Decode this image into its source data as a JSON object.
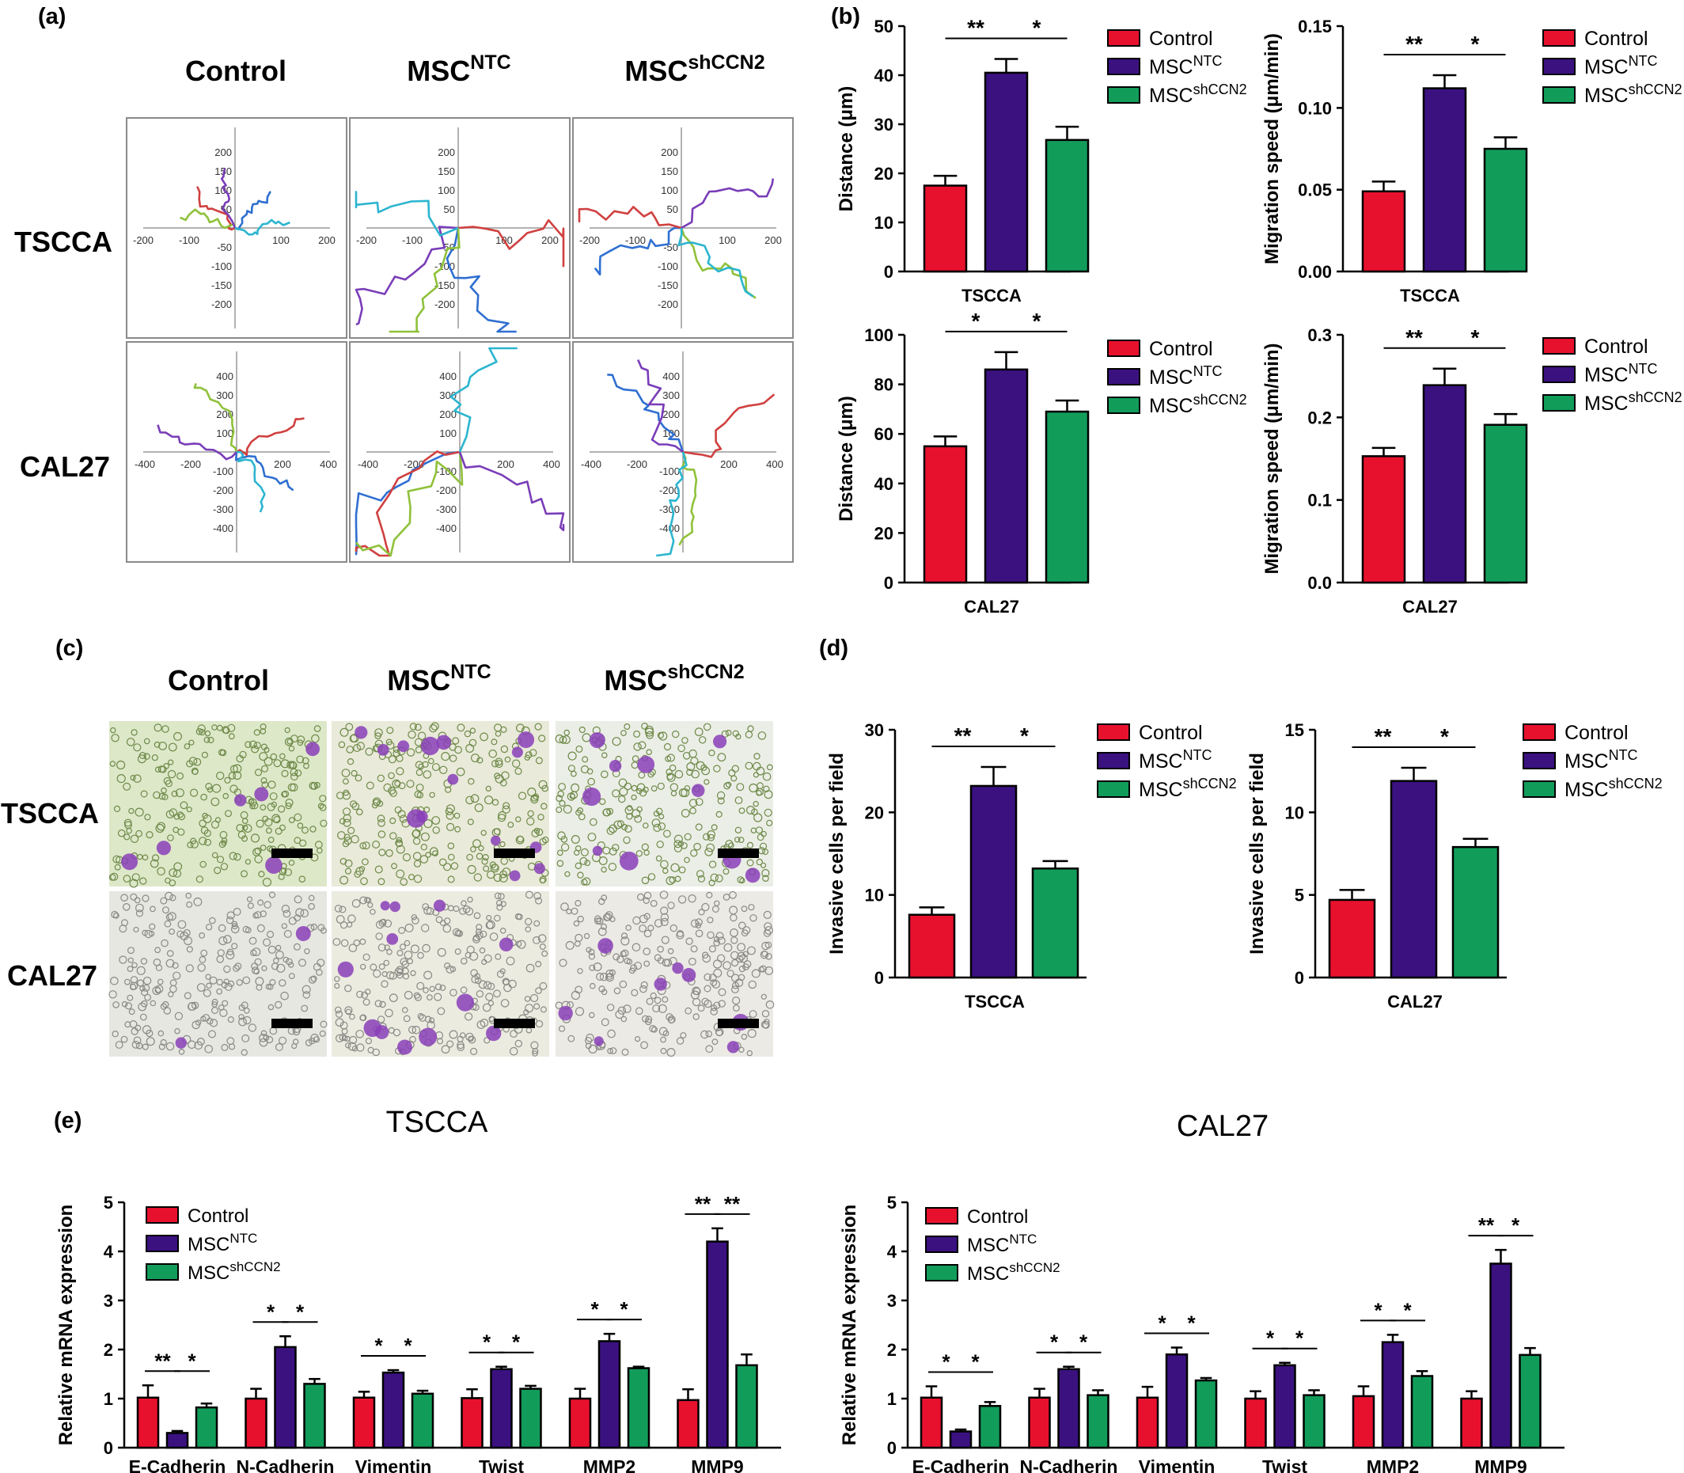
{
  "colors": {
    "control": "#e8112d",
    "ntc": "#3b1180",
    "sh": "#129c5a"
  },
  "panels": {
    "a": "(a)",
    "b": "(b)",
    "c": "(c)",
    "d": "(d)",
    "e": "(e)"
  },
  "legend": {
    "control": "Control",
    "ntc_base": "MSC",
    "ntc_sup": "NTC",
    "sh_base": "MSC",
    "sh_sup": "shCCN2"
  },
  "panel_a": {
    "columns": [
      "Control",
      "MSC",
      "MSC"
    ],
    "column_sups": [
      "",
      "NTC",
      "shCCN2"
    ],
    "rows": [
      "TSCCA",
      "CAL27"
    ],
    "tscca_ticks": [
      "200",
      "150",
      "100",
      "50",
      "-50",
      "-100",
      "-150",
      "-200",
      "-200",
      "-100",
      "100",
      "200"
    ],
    "cal27_ticks": [
      "400",
      "300",
      "200",
      "100",
      "-100",
      "-200",
      "-300",
      "-400",
      "-400",
      "-200",
      "200",
      "400"
    ]
  },
  "panel_c": {
    "columns": [
      "Control",
      "MSC",
      "MSC"
    ],
    "column_sups": [
      "",
      "NTC",
      "shCCN2"
    ],
    "rows": [
      "TSCCA",
      "CAL27"
    ]
  },
  "section_e_titles": [
    "TSCCA",
    "CAL27"
  ],
  "chart_data": [
    {
      "id": "b1",
      "type": "bar",
      "categories": [
        "TSCCA"
      ],
      "series": [
        {
          "name": "Control",
          "values": [
            17.5
          ],
          "err": [
            2
          ]
        },
        {
          "name": "MSC NTC",
          "values": [
            40.5
          ],
          "err": [
            2.8
          ]
        },
        {
          "name": "MSC shCCN2",
          "values": [
            26.8
          ],
          "err": [
            2.7
          ]
        }
      ],
      "ylabel": "Distance (μm)",
      "xlabel": "TSCCA",
      "ylim": [
        0,
        50
      ],
      "yticks": [
        "0",
        "10",
        "20",
        "30",
        "40",
        "50"
      ],
      "sig": [
        "**",
        "*"
      ]
    },
    {
      "id": "b2",
      "type": "bar",
      "categories": [
        "TSCCA"
      ],
      "series": [
        {
          "name": "Control",
          "values": [
            0.049
          ],
          "err": [
            0.006
          ]
        },
        {
          "name": "MSC NTC",
          "values": [
            0.112
          ],
          "err": [
            0.008
          ]
        },
        {
          "name": "MSC shCCN2",
          "values": [
            0.075
          ],
          "err": [
            0.007
          ]
        }
      ],
      "ylabel": "Migration speed (μm/min)",
      "xlabel": "TSCCA",
      "ylim": [
        0,
        0.15
      ],
      "yticks": [
        "0.00",
        "0.05",
        "0.10",
        "0.15"
      ],
      "sig": [
        "**",
        "*"
      ]
    },
    {
      "id": "b3",
      "type": "bar",
      "categories": [
        "CAL27"
      ],
      "series": [
        {
          "name": "Control",
          "values": [
            55
          ],
          "err": [
            4
          ]
        },
        {
          "name": "MSC NTC",
          "values": [
            86
          ],
          "err": [
            7
          ]
        },
        {
          "name": "MSC shCCN2",
          "values": [
            69
          ],
          "err": [
            4.5
          ]
        }
      ],
      "ylabel": "Distance (μm)",
      "xlabel": "CAL27",
      "ylim": [
        0,
        100
      ],
      "yticks": [
        "0",
        "20",
        "40",
        "60",
        "80",
        "100"
      ],
      "sig": [
        "*",
        "*"
      ]
    },
    {
      "id": "b4",
      "type": "bar",
      "categories": [
        "CAL27"
      ],
      "series": [
        {
          "name": "Control",
          "values": [
            0.153
          ],
          "err": [
            0.01
          ]
        },
        {
          "name": "MSC NTC",
          "values": [
            0.239
          ],
          "err": [
            0.02
          ]
        },
        {
          "name": "MSC shCCN2",
          "values": [
            0.191
          ],
          "err": [
            0.013
          ]
        }
      ],
      "ylabel": "Migration speed (μm/min)",
      "xlabel": "CAL27",
      "ylim": [
        0,
        0.3
      ],
      "yticks": [
        "0.0",
        "0.1",
        "0.2",
        "0.3"
      ],
      "sig": [
        "**",
        "*"
      ]
    },
    {
      "id": "d1",
      "type": "bar",
      "categories": [
        "TSCCA"
      ],
      "series": [
        {
          "name": "Control",
          "values": [
            7.6
          ],
          "err": [
            0.9
          ]
        },
        {
          "name": "MSC NTC",
          "values": [
            23.2
          ],
          "err": [
            2.3
          ]
        },
        {
          "name": "MSC shCCN2",
          "values": [
            13.2
          ],
          "err": [
            0.9
          ]
        }
      ],
      "ylabel": "Invasive cells per field",
      "xlabel": "TSCCA",
      "ylim": [
        0,
        30
      ],
      "yticks": [
        "0",
        "10",
        "20",
        "30"
      ],
      "sig": [
        "**",
        "*"
      ]
    },
    {
      "id": "d2",
      "type": "bar",
      "categories": [
        "CAL27"
      ],
      "series": [
        {
          "name": "Control",
          "values": [
            4.7
          ],
          "err": [
            0.6
          ]
        },
        {
          "name": "MSC NTC",
          "values": [
            11.9
          ],
          "err": [
            0.8
          ]
        },
        {
          "name": "MSC shCCN2",
          "values": [
            7.9
          ],
          "err": [
            0.5
          ]
        }
      ],
      "ylabel": "Invasive cells per field",
      "xlabel": "CAL27",
      "ylim": [
        0,
        15
      ],
      "yticks": [
        "0",
        "5",
        "10",
        "15"
      ],
      "sig": [
        "**",
        "*"
      ]
    },
    {
      "id": "e1",
      "type": "bar",
      "categories": [
        "E-Cadherin",
        "N-Cadherin",
        "Vimentin",
        "Twist",
        "MMP2",
        "MMP9"
      ],
      "series": [
        {
          "name": "Control",
          "values": [
            1.02,
            1.0,
            1.02,
            1.01,
            1.0,
            0.97
          ],
          "err": [
            0.25,
            0.2,
            0.12,
            0.18,
            0.2,
            0.22
          ]
        },
        {
          "name": "MSC NTC",
          "values": [
            0.3,
            2.05,
            1.53,
            1.6,
            2.17,
            4.2
          ],
          "err": [
            0.04,
            0.22,
            0.05,
            0.05,
            0.15,
            0.27
          ]
        },
        {
          "name": "MSC shCCN2",
          "values": [
            0.82,
            1.3,
            1.1,
            1.2,
            1.62,
            1.68
          ],
          "err": [
            0.08,
            0.1,
            0.06,
            0.06,
            0.03,
            0.22
          ]
        }
      ],
      "ylabel": "Relative mRNA expression",
      "xlabel": "",
      "ylim": [
        0,
        5
      ],
      "yticks": [
        "0",
        "1",
        "2",
        "3",
        "4",
        "5"
      ],
      "sig": [
        [
          "**",
          "*"
        ],
        [
          "*",
          "*"
        ],
        [
          "*",
          "*"
        ],
        [
          "*",
          "*"
        ],
        [
          "*",
          "*"
        ],
        [
          "**",
          "**"
        ]
      ]
    },
    {
      "id": "e2",
      "type": "bar",
      "categories": [
        "E-Cadherin",
        "N-Cadherin",
        "Vimentin",
        "Twist",
        "MMP2",
        "MMP9"
      ],
      "series": [
        {
          "name": "Control",
          "values": [
            1.02,
            1.02,
            1.02,
            1.0,
            1.05,
            1.0
          ],
          "err": [
            0.23,
            0.18,
            0.22,
            0.15,
            0.2,
            0.15
          ]
        },
        {
          "name": "MSC NTC",
          "values": [
            0.33,
            1.6,
            1.9,
            1.68,
            2.15,
            3.75
          ],
          "err": [
            0.04,
            0.05,
            0.14,
            0.05,
            0.15,
            0.28
          ]
        },
        {
          "name": "MSC shCCN2",
          "values": [
            0.85,
            1.07,
            1.37,
            1.07,
            1.46,
            1.89
          ],
          "err": [
            0.08,
            0.1,
            0.05,
            0.1,
            0.1,
            0.14
          ]
        }
      ],
      "ylabel": "Relative mRNA expression",
      "xlabel": "",
      "ylim": [
        0,
        5
      ],
      "yticks": [
        "0",
        "1",
        "2",
        "3",
        "4",
        "5"
      ],
      "sig": [
        [
          "*",
          "*"
        ],
        [
          "*",
          "*"
        ],
        [
          "*",
          "*"
        ],
        [
          "*",
          "*"
        ],
        [
          "*",
          "*"
        ],
        [
          "**",
          "*"
        ]
      ]
    }
  ]
}
